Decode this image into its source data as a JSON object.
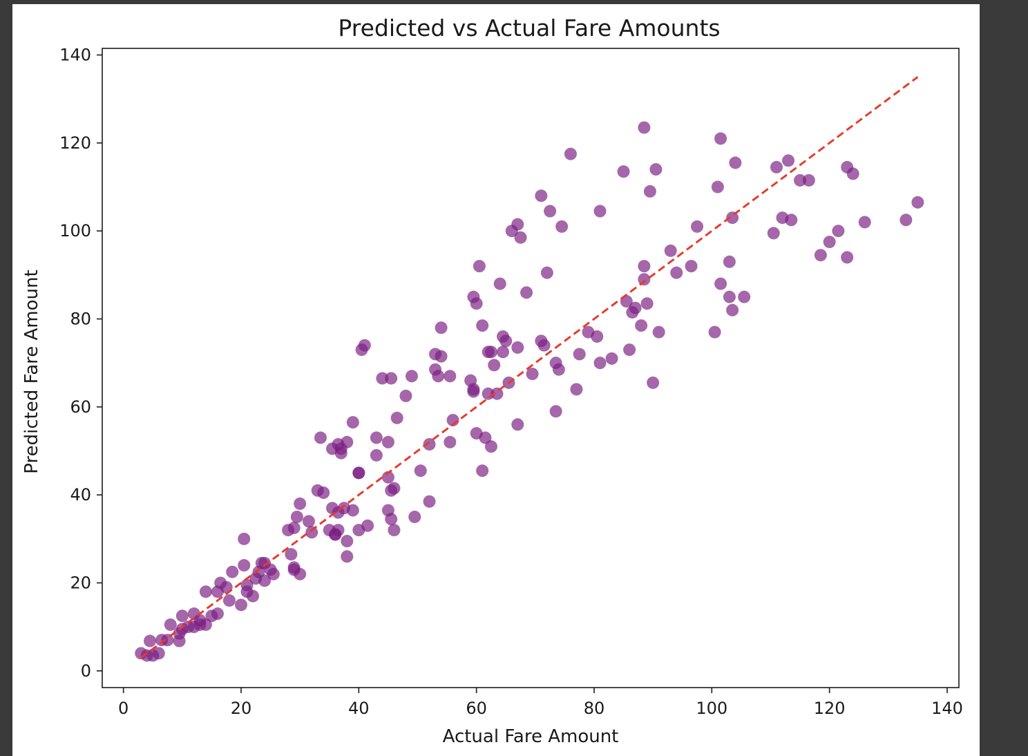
{
  "chart_data": {
    "type": "scatter",
    "title": "Predicted vs Actual Fare Amounts",
    "xlabel": "Actual Fare Amount",
    "ylabel": "Predicted Fare Amount",
    "xlim": [
      -3.6,
      142
    ],
    "ylim": [
      -3.8,
      141.5
    ],
    "xticks": [
      0,
      20,
      40,
      60,
      80,
      100,
      120,
      140
    ],
    "yticks": [
      0,
      20,
      40,
      60,
      80,
      100,
      120,
      140
    ],
    "grid": false,
    "series": [
      {
        "marker": "circle",
        "color": "#7b1e82",
        "points": [
          [
            3,
            4
          ],
          [
            4,
            3.5
          ],
          [
            5,
            3.5
          ],
          [
            6,
            4
          ],
          [
            4.5,
            6.8
          ],
          [
            6.5,
            7
          ],
          [
            7.5,
            7
          ],
          [
            8,
            10.5
          ],
          [
            9.5,
            6.8
          ],
          [
            9.5,
            8.5
          ],
          [
            10,
            9.5
          ],
          [
            10,
            12.5
          ],
          [
            11,
            10
          ],
          [
            12,
            10
          ],
          [
            12,
            13
          ],
          [
            13,
            10.5
          ],
          [
            13,
            11.5
          ],
          [
            14,
            10.5
          ],
          [
            15,
            12.5
          ],
          [
            16,
            13
          ],
          [
            14,
            18
          ],
          [
            16,
            18
          ],
          [
            16.5,
            20
          ],
          [
            17.5,
            19
          ],
          [
            18,
            16
          ],
          [
            18.5,
            22.5
          ],
          [
            20,
            15
          ],
          [
            20.5,
            30
          ],
          [
            20.5,
            24
          ],
          [
            21,
            18
          ],
          [
            21,
            19.5
          ],
          [
            22,
            17
          ],
          [
            22.5,
            21
          ],
          [
            23,
            22.5
          ],
          [
            23.5,
            24.5
          ],
          [
            24,
            24.5
          ],
          [
            24,
            20.5
          ],
          [
            25,
            23
          ],
          [
            25.5,
            22
          ],
          [
            28,
            32
          ],
          [
            29,
            32.5
          ],
          [
            28.5,
            26.5
          ],
          [
            29,
            23.5
          ],
          [
            29,
            23
          ],
          [
            29.5,
            35
          ],
          [
            30,
            22
          ],
          [
            30,
            38
          ],
          [
            31.5,
            34
          ],
          [
            32,
            31.5
          ],
          [
            33,
            41
          ],
          [
            33.5,
            53
          ],
          [
            34,
            40.5
          ],
          [
            35,
            32
          ],
          [
            35.5,
            50.5
          ],
          [
            35.5,
            37
          ],
          [
            36,
            31
          ],
          [
            36,
            31
          ],
          [
            36.5,
            36
          ],
          [
            36.5,
            51.5
          ],
          [
            36.5,
            32
          ],
          [
            37,
            50.5
          ],
          [
            37,
            49.5
          ],
          [
            37.5,
            37
          ],
          [
            38,
            52
          ],
          [
            38,
            26
          ],
          [
            38,
            29.5
          ],
          [
            39,
            36.5
          ],
          [
            39,
            56.5
          ],
          [
            40,
            45
          ],
          [
            40,
            45
          ],
          [
            40,
            32
          ],
          [
            40.5,
            73
          ],
          [
            41,
            74
          ],
          [
            41.5,
            33
          ],
          [
            43,
            53
          ],
          [
            43,
            49
          ],
          [
            44,
            66.5
          ],
          [
            45,
            52
          ],
          [
            45,
            36.5
          ],
          [
            45,
            44
          ],
          [
            45.5,
            66.5
          ],
          [
            45.5,
            41
          ],
          [
            45.5,
            34.5
          ],
          [
            46,
            32
          ],
          [
            46,
            41.5
          ],
          [
            46.5,
            57.5
          ],
          [
            48,
            62.5
          ],
          [
            49,
            67
          ],
          [
            49.5,
            35
          ],
          [
            50.5,
            45.5
          ],
          [
            52,
            51.5
          ],
          [
            52,
            38.5
          ],
          [
            53,
            68.5
          ],
          [
            53,
            72
          ],
          [
            53.5,
            67
          ],
          [
            54,
            71.5
          ],
          [
            54,
            78
          ],
          [
            55.5,
            67
          ],
          [
            55.5,
            52
          ],
          [
            56,
            57
          ],
          [
            59,
            66
          ],
          [
            59.5,
            64
          ],
          [
            59.5,
            63.5
          ],
          [
            59.5,
            85
          ],
          [
            60,
            83.5
          ],
          [
            60,
            54
          ],
          [
            60.5,
            92
          ],
          [
            61,
            78.5
          ],
          [
            61,
            45.5
          ],
          [
            61.5,
            53
          ],
          [
            62,
            72.5
          ],
          [
            62,
            63
          ],
          [
            62.5,
            72.5
          ],
          [
            62.5,
            51
          ],
          [
            63,
            69.5
          ],
          [
            63.5,
            63
          ],
          [
            64,
            88
          ],
          [
            64.5,
            76
          ],
          [
            64.5,
            72.5
          ],
          [
            65,
            75
          ],
          [
            65.5,
            65.5
          ],
          [
            66,
            100
          ],
          [
            67,
            73.5
          ],
          [
            67,
            101.5
          ],
          [
            67,
            56
          ],
          [
            67.5,
            98.5
          ],
          [
            68.5,
            86
          ],
          [
            69.5,
            67.5
          ],
          [
            71,
            75
          ],
          [
            71,
            108
          ],
          [
            71.5,
            74
          ],
          [
            72,
            90.5
          ],
          [
            72.5,
            104.5
          ],
          [
            73.5,
            70
          ],
          [
            73.5,
            59
          ],
          [
            74,
            68.5
          ],
          [
            74.5,
            101
          ],
          [
            76,
            117.5
          ],
          [
            77,
            64
          ],
          [
            77.5,
            72
          ],
          [
            79,
            77
          ],
          [
            80.5,
            76
          ],
          [
            81,
            70
          ],
          [
            81,
            104.5
          ],
          [
            83,
            71
          ],
          [
            85,
            113.5
          ],
          [
            85.5,
            84
          ],
          [
            86,
            73
          ],
          [
            86.5,
            81.5
          ],
          [
            87,
            82.5
          ],
          [
            88,
            78.5
          ],
          [
            88.5,
            92
          ],
          [
            88.5,
            89
          ],
          [
            88.5,
            123.5
          ],
          [
            89,
            83.5
          ],
          [
            89.5,
            109
          ],
          [
            90,
            65.5
          ],
          [
            90.5,
            114
          ],
          [
            91,
            77
          ],
          [
            93,
            95.5
          ],
          [
            94,
            90.5
          ],
          [
            96.5,
            92
          ],
          [
            97.5,
            101
          ],
          [
            100.5,
            77
          ],
          [
            101,
            110
          ],
          [
            101.5,
            88
          ],
          [
            101.5,
            121
          ],
          [
            103,
            93
          ],
          [
            103,
            85
          ],
          [
            103.5,
            82
          ],
          [
            103.5,
            103
          ],
          [
            104,
            115.5
          ],
          [
            105.5,
            85
          ],
          [
            110.5,
            99.5
          ],
          [
            111,
            114.5
          ],
          [
            112,
            103
          ],
          [
            113,
            116
          ],
          [
            113.5,
            102.5
          ],
          [
            115,
            111.5
          ],
          [
            116.5,
            111.5
          ],
          [
            118.5,
            94.5
          ],
          [
            120,
            97.5
          ],
          [
            121.5,
            100
          ],
          [
            123,
            114.5
          ],
          [
            123,
            94
          ],
          [
            124,
            113
          ],
          [
            126,
            102
          ],
          [
            133,
            102.5
          ],
          [
            135,
            106.5
          ]
        ]
      },
      {
        "line_style": "dashed",
        "color": "#e63c2b",
        "points": [
          [
            3,
            3
          ],
          [
            135,
            135
          ]
        ]
      }
    ]
  }
}
